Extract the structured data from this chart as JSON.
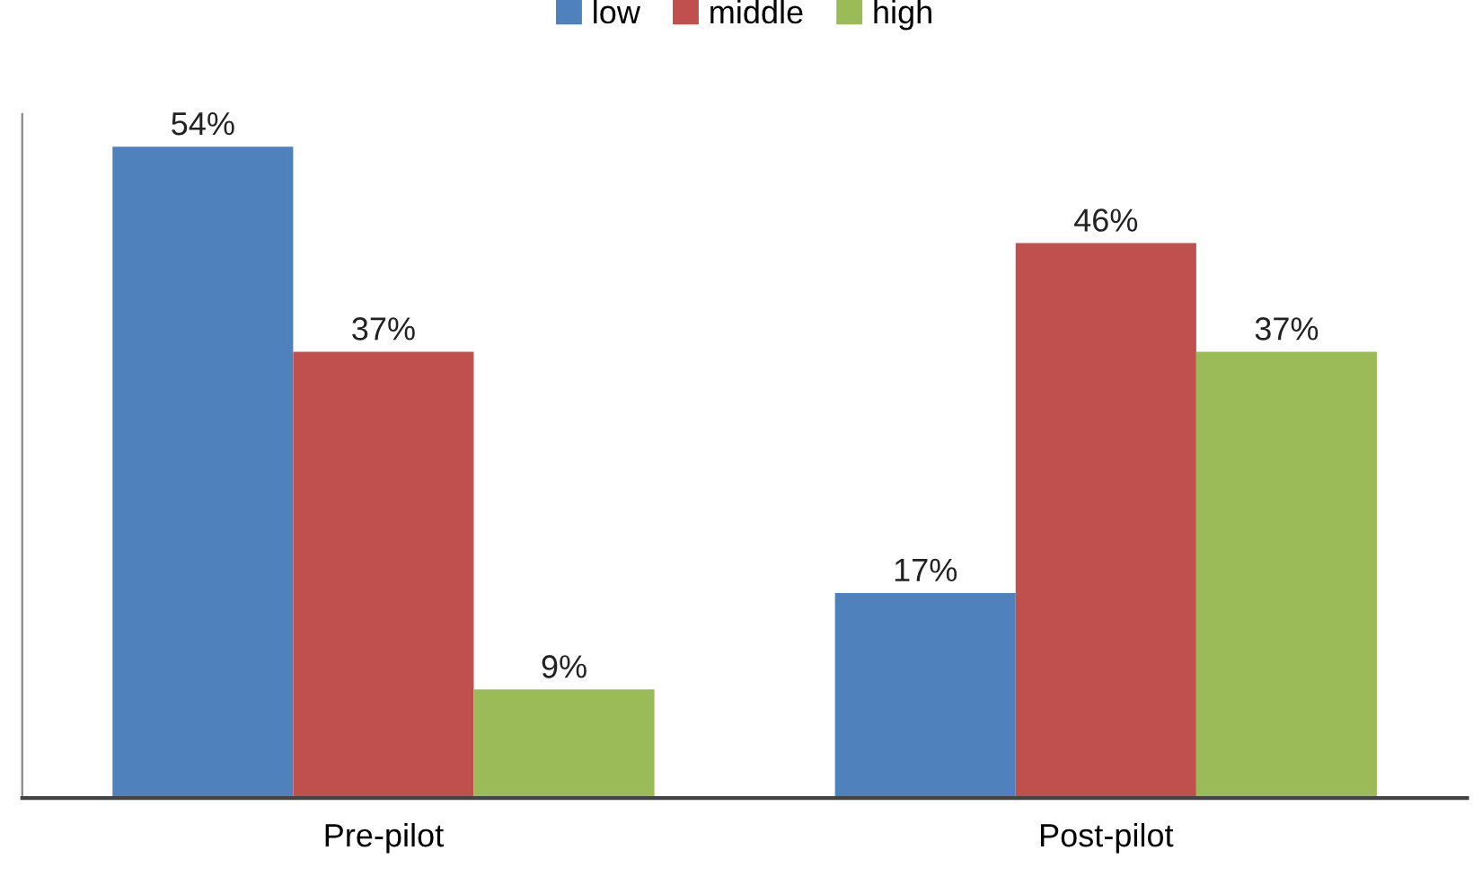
{
  "chart_data": {
    "type": "bar",
    "categories": [
      "Pre-pilot",
      "Post-pilot"
    ],
    "series": [
      {
        "name": "low",
        "color": "#4f81bd",
        "values": [
          54,
          17
        ],
        "value_labels": [
          "54%",
          "17%"
        ]
      },
      {
        "name": "middle",
        "color": "#c0504d",
        "values": [
          37,
          46
        ],
        "value_labels": [
          "37%",
          "46%"
        ]
      },
      {
        "name": "high",
        "color": "#9bbb59",
        "values": [
          9,
          37
        ],
        "value_labels": [
          "9%",
          "37%"
        ]
      }
    ],
    "legend": "top",
    "grid": false
  }
}
